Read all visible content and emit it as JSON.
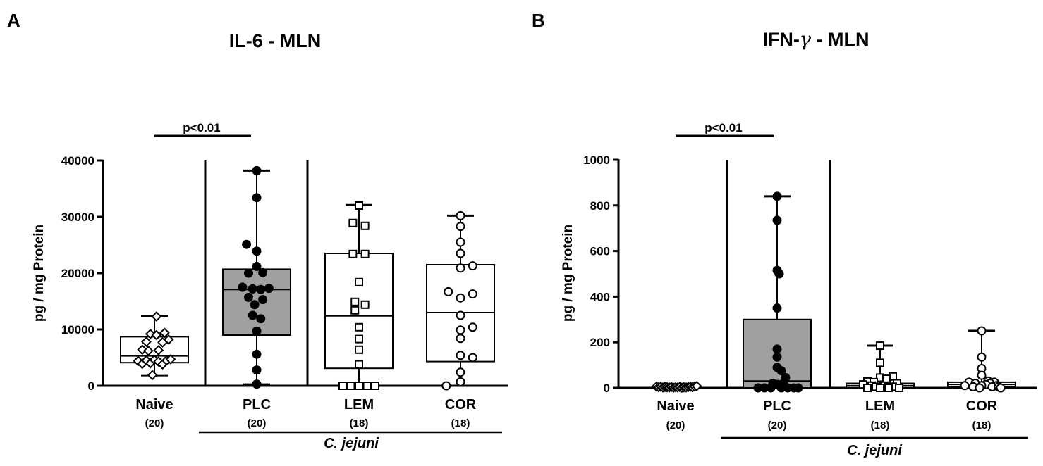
{
  "chart_data": [
    {
      "type": "box",
      "panel_label": "A",
      "title": "IL-6 - MLN",
      "ylabel": "pg / mg Protein",
      "ylim": [
        0,
        40000
      ],
      "yticks": [
        0,
        10000,
        20000,
        30000,
        40000
      ],
      "ytick_labels": [
        "0",
        "10000",
        "20000",
        "30000",
        "40000"
      ],
      "categories": [
        "Naive",
        "PLC",
        "LEM",
        "COR"
      ],
      "n_labels": [
        "(20)",
        "(20)",
        "(18)",
        "(18)"
      ],
      "group_label": "C. jejuni",
      "significance": {
        "label": "p<0.01",
        "from": 0,
        "to": 1
      },
      "colors": {
        "PLC_box": "#a0a0a0",
        "line": "#000000"
      },
      "series": [
        {
          "name": "Naive",
          "marker": "diamond",
          "filled": false,
          "box_fill": "none",
          "box": {
            "min": 1800,
            "q1": 4100,
            "median": 5300,
            "q3": 8700,
            "max": 12400
          },
          "points": [
            [
              -0.4,
              4400
            ],
            [
              -0.3,
              3900
            ],
            [
              -0.2,
              4500
            ],
            [
              -0.1,
              4000
            ],
            [
              0.0,
              4600
            ],
            [
              0.1,
              4300
            ],
            [
              0.2,
              3800
            ],
            [
              0.3,
              4500
            ],
            [
              0.4,
              4700
            ],
            [
              -0.3,
              6400
            ],
            [
              -0.15,
              6200
            ],
            [
              0.1,
              6300
            ],
            [
              -0.2,
              7800
            ],
            [
              0.2,
              7700
            ],
            [
              0.35,
              8200
            ],
            [
              -0.1,
              9200
            ],
            [
              0.05,
              9000
            ],
            [
              0.25,
              9400
            ],
            [
              -0.05,
              1900
            ],
            [
              0.05,
              12300
            ]
          ]
        },
        {
          "name": "PLC",
          "marker": "circle",
          "filled": true,
          "box_fill": "#a0a0a0",
          "box": {
            "min": 300,
            "q1": 9000,
            "median": 17100,
            "q3": 20700,
            "max": 38200
          },
          "points": [
            [
              0.0,
              38200
            ],
            [
              0.0,
              33400
            ],
            [
              -0.25,
              25100
            ],
            [
              0.0,
              23900
            ],
            [
              0.0,
              21200
            ],
            [
              -0.2,
              20000
            ],
            [
              0.15,
              20100
            ],
            [
              -0.35,
              17500
            ],
            [
              0.3,
              17300
            ],
            [
              -0.1,
              17200
            ],
            [
              0.1,
              17100
            ],
            [
              -0.2,
              15700
            ],
            [
              0.15,
              15300
            ],
            [
              -0.05,
              14400
            ],
            [
              -0.1,
              12500
            ],
            [
              0.1,
              11900
            ],
            [
              0.0,
              9700
            ],
            [
              0.0,
              5600
            ],
            [
              0.0,
              2800
            ],
            [
              0.0,
              300
            ]
          ]
        },
        {
          "name": "LEM",
          "marker": "square",
          "filled": false,
          "box_fill": "none",
          "box": {
            "min": 0,
            "q1": 3100,
            "median": 12400,
            "q3": 23500,
            "max": 32100
          },
          "points": [
            [
              0.0,
              32000
            ],
            [
              -0.15,
              28900
            ],
            [
              0.15,
              28400
            ],
            [
              -0.15,
              23400
            ],
            [
              0.15,
              23400
            ],
            [
              0.0,
              18400
            ],
            [
              -0.1,
              14900
            ],
            [
              0.15,
              14400
            ],
            [
              -0.1,
              13400
            ],
            [
              0.0,
              10400
            ],
            [
              0.0,
              8300
            ],
            [
              0.0,
              6400
            ],
            [
              0.0,
              3800
            ],
            [
              -0.4,
              0
            ],
            [
              -0.2,
              0
            ],
            [
              0.0,
              0
            ],
            [
              0.2,
              0
            ],
            [
              0.4,
              0
            ]
          ]
        },
        {
          "name": "COR",
          "marker": "circle",
          "filled": false,
          "box_fill": "none",
          "box": {
            "min": 0,
            "q1": 4300,
            "median": 13000,
            "q3": 21500,
            "max": 30200
          },
          "points": [
            [
              0.0,
              30200
            ],
            [
              0.0,
              28300
            ],
            [
              0.0,
              25500
            ],
            [
              0.0,
              23500
            ],
            [
              0.0,
              20900
            ],
            [
              0.3,
              21300
            ],
            [
              -0.3,
              16700
            ],
            [
              0.3,
              16300
            ],
            [
              0.0,
              15600
            ],
            [
              0.0,
              12500
            ],
            [
              0.0,
              9900
            ],
            [
              0.3,
              10400
            ],
            [
              0.0,
              8400
            ],
            [
              0.0,
              5400
            ],
            [
              0.3,
              5000
            ],
            [
              0.0,
              2400
            ],
            [
              0.0,
              700
            ],
            [
              -0.35,
              0
            ]
          ]
        }
      ]
    },
    {
      "type": "box",
      "panel_label": "B",
      "title_prefix": "IFN-",
      "title_greek": "γ",
      "title_suffix": " - MLN",
      "ylabel": "pg / mg Protein",
      "ylim": [
        0,
        1000
      ],
      "yticks": [
        0,
        200,
        400,
        600,
        800,
        1000
      ],
      "ytick_labels": [
        "0",
        "200",
        "400",
        "600",
        "800",
        "1000"
      ],
      "categories": [
        "Naive",
        "PLC",
        "LEM",
        "COR"
      ],
      "n_labels": [
        "(20)",
        "(20)",
        "(18)",
        "(18)"
      ],
      "group_label": "C. jejuni",
      "significance": {
        "label": "p<0.01",
        "from": 0,
        "to": 1
      },
      "colors": {
        "PLC_box": "#a0a0a0",
        "line": "#000000"
      },
      "series": [
        {
          "name": "Naive",
          "marker": "diamond",
          "filled": false,
          "box_fill": "none",
          "box": {
            "min": 0,
            "q1": 0,
            "median": 0,
            "q3": 0,
            "max": 8
          },
          "points": [
            [
              -0.45,
              6
            ],
            [
              -0.4,
              3
            ],
            [
              -0.35,
              5
            ],
            [
              -0.3,
              2
            ],
            [
              -0.25,
              4
            ],
            [
              -0.2,
              3
            ],
            [
              -0.15,
              2
            ],
            [
              -0.1,
              4
            ],
            [
              -0.05,
              1
            ],
            [
              0.0,
              3
            ],
            [
              0.05,
              2
            ],
            [
              0.1,
              4
            ],
            [
              0.15,
              1
            ],
            [
              0.2,
              3
            ],
            [
              0.25,
              2
            ],
            [
              0.3,
              4
            ],
            [
              0.35,
              5
            ],
            [
              0.4,
              3
            ],
            [
              0.45,
              6
            ],
            [
              0.5,
              8
            ]
          ]
        },
        {
          "name": "PLC",
          "marker": "circle",
          "filled": true,
          "box_fill": "#a0a0a0",
          "box": {
            "min": 0,
            "q1": 0,
            "median": 30,
            "q3": 300,
            "max": 840
          },
          "points": [
            [
              0.0,
              840
            ],
            [
              0.0,
              735
            ],
            [
              0.0,
              515
            ],
            [
              0.05,
              500
            ],
            [
              0.0,
              350
            ],
            [
              0.0,
              170
            ],
            [
              0.0,
              135
            ],
            [
              0.0,
              90
            ],
            [
              0.1,
              75
            ],
            [
              0.2,
              45
            ],
            [
              -0.1,
              20
            ],
            [
              0.15,
              20
            ],
            [
              0.0,
              15
            ],
            [
              -0.45,
              0
            ],
            [
              -0.3,
              0
            ],
            [
              -0.15,
              0
            ],
            [
              0.1,
              0
            ],
            [
              0.25,
              0
            ],
            [
              0.4,
              0
            ],
            [
              0.5,
              0
            ]
          ]
        },
        {
          "name": "LEM",
          "marker": "square",
          "filled": false,
          "box_fill": "none",
          "box": {
            "min": 0,
            "q1": 0,
            "median": 10,
            "q3": 20,
            "max": 185
          },
          "points": [
            [
              0.0,
              185
            ],
            [
              0.0,
              110
            ],
            [
              0.3,
              50
            ],
            [
              0.0,
              45
            ],
            [
              0.15,
              40
            ],
            [
              -0.3,
              28
            ],
            [
              -0.15,
              25
            ],
            [
              0.4,
              20
            ],
            [
              -0.4,
              15
            ],
            [
              -0.2,
              10
            ],
            [
              0.1,
              10
            ],
            [
              -0.1,
              5
            ],
            [
              0.2,
              5
            ],
            [
              0.3,
              5
            ],
            [
              -0.3,
              0
            ],
            [
              0.0,
              0
            ],
            [
              0.2,
              0
            ],
            [
              0.45,
              0
            ]
          ]
        },
        {
          "name": "COR",
          "marker": "circle",
          "filled": false,
          "box_fill": "none",
          "box": {
            "min": 0,
            "q1": 5,
            "median": 15,
            "q3": 25,
            "max": 250
          },
          "points": [
            [
              0.0,
              250
            ],
            [
              0.0,
              135
            ],
            [
              0.0,
              85
            ],
            [
              0.0,
              55
            ],
            [
              0.15,
              30
            ],
            [
              -0.3,
              25
            ],
            [
              0.3,
              25
            ],
            [
              -0.15,
              20
            ],
            [
              0.2,
              20
            ],
            [
              0.1,
              15
            ],
            [
              -0.4,
              10
            ],
            [
              0.0,
              10
            ],
            [
              0.35,
              10
            ],
            [
              -0.2,
              5
            ],
            [
              0.25,
              5
            ],
            [
              0.4,
              5
            ],
            [
              0.45,
              0
            ],
            [
              -0.05,
              0
            ]
          ]
        }
      ]
    }
  ]
}
